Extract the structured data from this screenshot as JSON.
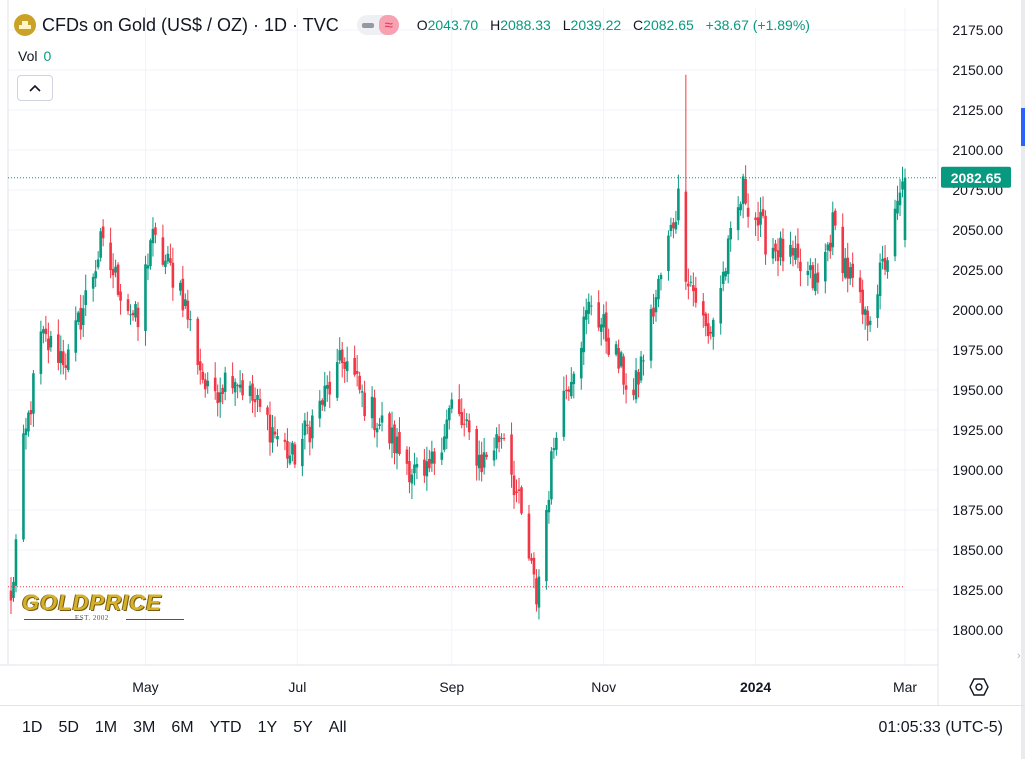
{
  "header": {
    "symbol_title": "CFDs on Gold (US$ / OZ) · 1D · TVC",
    "ohlc": {
      "o_label": "O",
      "o_value": "2043.70",
      "h_label": "H",
      "h_value": "2088.33",
      "l_label": "L",
      "l_value": "2039.22",
      "c_label": "C",
      "c_value": "2082.65",
      "change": "+38.67 (+1.89%)"
    },
    "vol_label": "Vol",
    "vol_value": "0"
  },
  "last_price_label": "2082.65",
  "logo": {
    "brand": "GOLDPRICE",
    "tagline": "EST. 2002"
  },
  "bottom_bar": {
    "ranges": [
      "1D",
      "5D",
      "1M",
      "3M",
      "6M",
      "YTD",
      "1Y",
      "5Y",
      "All"
    ],
    "clock": "01:05:33 (UTC-5)"
  },
  "colors": {
    "up": "#089981",
    "down": "#f23645",
    "grid": "#f0f3fa",
    "axis_text": "#131722"
  },
  "icons": [
    "collapse-chevron-icon",
    "settings-icon",
    "hide-indicator-icon",
    "wave-icon"
  ],
  "chart_data": {
    "type": "candlestick",
    "title": "CFDs on Gold (US$ / OZ)",
    "interval": "1D",
    "x_tick_labels": [
      "May",
      "Jul",
      "Sep",
      "Nov",
      "2024",
      "Mar"
    ],
    "y_tick_labels": [
      "1800.00",
      "1825.00",
      "1850.00",
      "1875.00",
      "1900.00",
      "1925.00",
      "1950.00",
      "1975.00",
      "2000.00",
      "2025.00",
      "2050.00",
      "2075.00",
      "2100.00",
      "2125.00",
      "2150.00",
      "2175.00"
    ],
    "ylim": [
      1780,
      2180
    ],
    "last_close": 2082.65,
    "approx_close_path": [
      {
        "date": "2023-03-08",
        "close": 1815
      },
      {
        "date": "2023-03-13",
        "close": 1912
      },
      {
        "date": "2023-03-20",
        "close": 1982
      },
      {
        "date": "2023-03-31",
        "close": 1969
      },
      {
        "date": "2023-04-13",
        "close": 2040
      },
      {
        "date": "2023-04-28",
        "close": 1990
      },
      {
        "date": "2023-05-03",
        "close": 2045
      },
      {
        "date": "2023-05-15",
        "close": 2015
      },
      {
        "date": "2023-05-26",
        "close": 1946
      },
      {
        "date": "2023-06-05",
        "close": 1962
      },
      {
        "date": "2023-06-23",
        "close": 1921
      },
      {
        "date": "2023-06-29",
        "close": 1907
      },
      {
        "date": "2023-07-20",
        "close": 1970
      },
      {
        "date": "2023-07-27",
        "close": 1945
      },
      {
        "date": "2023-08-21",
        "close": 1890
      },
      {
        "date": "2023-09-01",
        "close": 1940
      },
      {
        "date": "2023-09-13",
        "close": 1905
      },
      {
        "date": "2023-09-22",
        "close": 1925
      },
      {
        "date": "2023-10-05",
        "close": 1820
      },
      {
        "date": "2023-10-13",
        "close": 1931
      },
      {
        "date": "2023-10-27",
        "close": 2006
      },
      {
        "date": "2023-11-13",
        "close": 1945
      },
      {
        "date": "2023-12-01",
        "close": 2070
      },
      {
        "date": "2023-12-04",
        "close": 2028
      },
      {
        "date": "2023-12-13",
        "close": 1982
      },
      {
        "date": "2023-12-27",
        "close": 2075
      },
      {
        "date": "2024-01-05",
        "close": 2045
      },
      {
        "date": "2024-01-26",
        "close": 2015
      },
      {
        "date": "2024-02-01",
        "close": 2052
      },
      {
        "date": "2024-02-14",
        "close": 1992
      },
      {
        "date": "2024-02-23",
        "close": 2035
      },
      {
        "date": "2024-03-01",
        "close": 2082.65
      }
    ]
  }
}
